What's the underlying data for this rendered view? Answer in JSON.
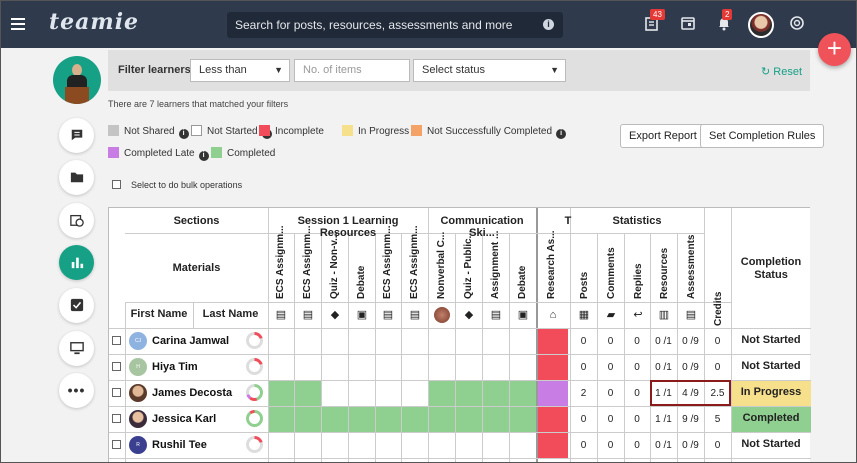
{
  "header": {
    "logo_text": "teamie",
    "search_placeholder": "Search for posts, resources, assessments and more",
    "posts_badge": "43",
    "notifications_badge": "2",
    "fab_label": "+"
  },
  "filters": {
    "title": "Filter learners",
    "comparison": "Less than",
    "items_placeholder": "No. of items",
    "status_placeholder": "Select status",
    "reset_label": "Reset",
    "match_text": "There are 7 learners that matched your filters"
  },
  "legend": [
    {
      "label": "Not Shared",
      "color": "#c4c4c4"
    },
    {
      "label": "Not Started",
      "color": "#ffffff"
    },
    {
      "label": "Incomplete",
      "color": "#f24c5a"
    },
    {
      "label": "In Progress",
      "color": "#f7e08c"
    },
    {
      "label": "Not Successfully Completed",
      "color": "#f2a365"
    },
    {
      "label": "Completed Late",
      "color": "#c77de3"
    },
    {
      "label": "Completed",
      "color": "#8fcf8f"
    }
  ],
  "actions": {
    "export_label": "Export Report",
    "rules_label": "Set Completion Rules",
    "bulk_label": "Select to do bulk operations"
  },
  "table": {
    "sections_label": "Sections",
    "materials_label": "Materials",
    "first_name_label": "First Name",
    "last_name_label": "Last Name",
    "section1": "Session 1 Learning Resources",
    "section2": "Communication Ski...",
    "section3": "T",
    "statistics_label": "Statistics",
    "completion_label": "Completion Status",
    "materials": [
      "ECS Assignm...",
      "ECS Assignm...",
      "Quiz - Non-v...",
      "Debate",
      "ECS Assignm...",
      "ECS Assignm...",
      "Nonverbal C...",
      "Quiz - Public...",
      "Assignment ...",
      "Debate",
      "Research As..."
    ],
    "stat_cols": [
      "Posts",
      "Comments",
      "Replies",
      "Resources",
      "Assessments",
      "Credits"
    ],
    "learners": [
      {
        "first": "Carina",
        "last": "Jamwal",
        "initials": "CJ",
        "avatar_color": "#8fb3e0",
        "posts": "0",
        "comments": "0",
        "replies": "0",
        "resources": "0 /1",
        "assessments": "0 /9",
        "credits": "0",
        "status": "Not Started"
      },
      {
        "first": "Hiya",
        "last": "Tim",
        "initials": "H",
        "avatar_color": "#a7c5a0",
        "posts": "0",
        "comments": "0",
        "replies": "0",
        "resources": "0 /1",
        "assessments": "0 /9",
        "credits": "0",
        "status": "Not Started"
      },
      {
        "first": "James",
        "last": "Decosta",
        "initials": "",
        "avatar_color": "#7a5a4a",
        "posts": "2",
        "comments": "0",
        "replies": "0",
        "resources": "1 /1",
        "assessments": "4 /9",
        "credits": "2.5",
        "status": "In Progress"
      },
      {
        "first": "Jessica",
        "last": "Karl",
        "initials": "",
        "avatar_color": "#6a4a5a",
        "posts": "0",
        "comments": "0",
        "replies": "0",
        "resources": "1 /1",
        "assessments": "9 /9",
        "credits": "5",
        "status": "Completed"
      },
      {
        "first": "Rushil",
        "last": "Tee",
        "initials": "R",
        "avatar_color": "#3b3f8f",
        "posts": "0",
        "comments": "0",
        "replies": "0",
        "resources": "0 /1",
        "assessments": "0 /9",
        "credits": "0",
        "status": "Not Started"
      }
    ]
  }
}
